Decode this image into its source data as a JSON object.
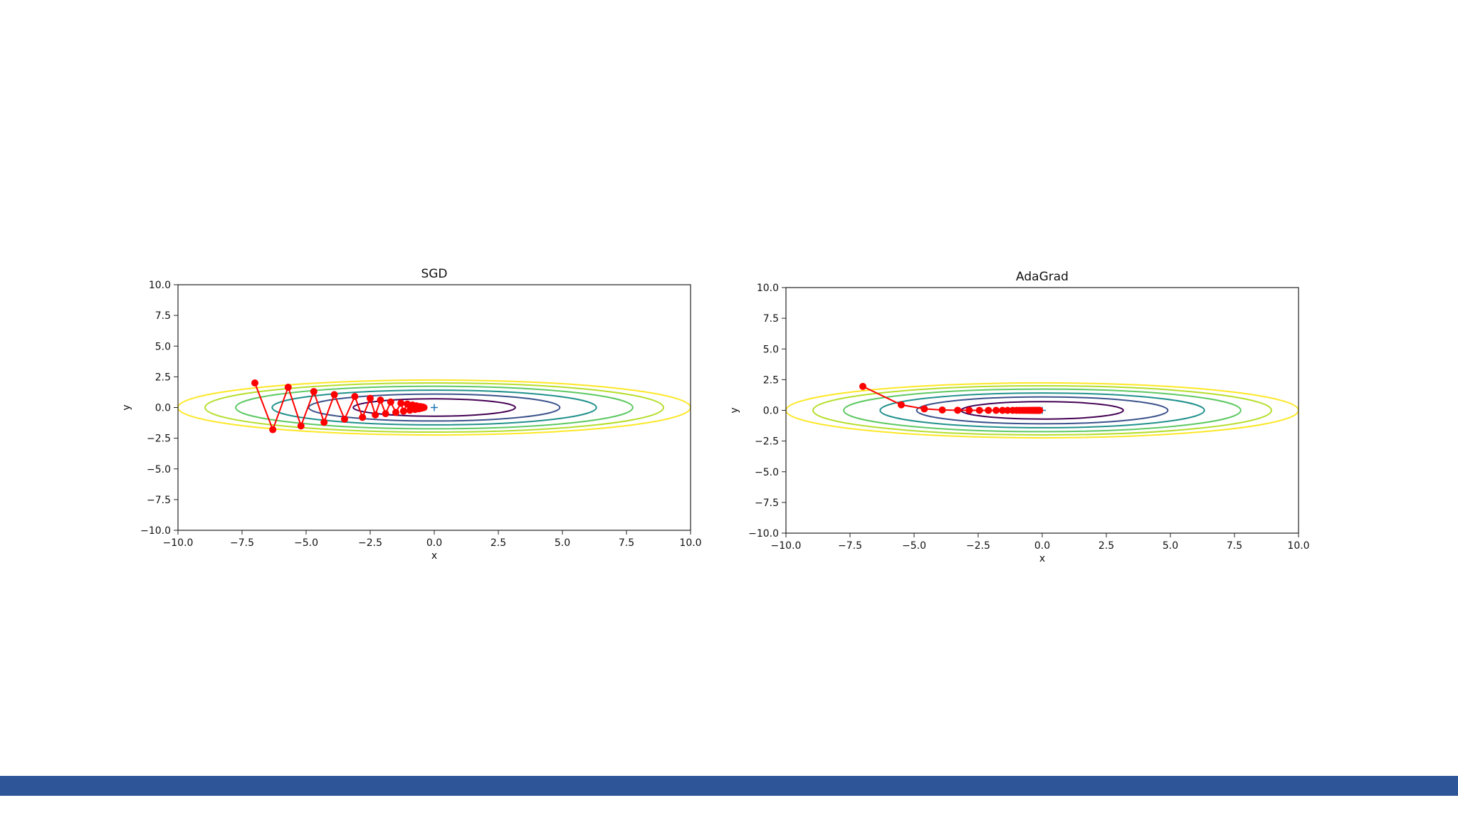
{
  "colors": {
    "footer_bar": "#2e5597",
    "path": "#ff0000",
    "contours": [
      "#440154",
      "#3b528b",
      "#21918c",
      "#5ec962",
      "#b5de2b",
      "#fde725"
    ]
  },
  "chart_data": [
    {
      "type": "line",
      "title": "SGD",
      "xlabel": "x",
      "ylabel": "y",
      "xlim": [
        -10,
        10
      ],
      "ylim": [
        -10,
        10
      ],
      "xticks": [
        "−10.0",
        "−7.5",
        "−5.0",
        "−2.5",
        "0.0",
        "2.5",
        "5.0",
        "7.5",
        "10.0"
      ],
      "yticks": [
        "10.0",
        "7.5",
        "5.0",
        "2.5",
        "0.0",
        "−2.5",
        "−5.0",
        "−7.5",
        "−10.0"
      ],
      "contour_levels": [
        0.5,
        1.2,
        2.0,
        3.0,
        4.0,
        5.0
      ],
      "minimum": {
        "x": 0,
        "y": 0
      },
      "series": [
        {
          "x": [
            -7.0,
            -6.3,
            -5.7,
            -5.2,
            -4.7,
            -4.3,
            -3.9,
            -3.5,
            -3.1,
            -2.8,
            -2.5,
            -2.3,
            -2.1,
            -1.9,
            -1.7,
            -1.5,
            -1.3,
            -1.2,
            -1.05,
            -0.95,
            -0.85,
            -0.75,
            -0.7,
            -0.6,
            -0.55,
            -0.5,
            -0.45,
            -0.4
          ],
          "y": [
            2.0,
            -1.8,
            1.65,
            -1.5,
            1.3,
            -1.2,
            1.05,
            -0.95,
            0.9,
            -0.8,
            0.75,
            -0.6,
            0.6,
            -0.5,
            0.45,
            -0.4,
            0.35,
            -0.3,
            0.28,
            -0.22,
            0.2,
            -0.16,
            0.14,
            -0.1,
            0.08,
            -0.06,
            0.04,
            0.0
          ]
        }
      ]
    },
    {
      "type": "line",
      "title": "AdaGrad",
      "xlabel": "x",
      "ylabel": "y",
      "xlim": [
        -10,
        10
      ],
      "ylim": [
        -10,
        10
      ],
      "xticks": [
        "−10.0",
        "−7.5",
        "−5.0",
        "−2.5",
        "0.0",
        "2.5",
        "5.0",
        "7.5",
        "10.0"
      ],
      "yticks": [
        "10.0",
        "7.5",
        "5.0",
        "2.5",
        "0.0",
        "−2.5",
        "−5.0",
        "−7.5",
        "−10.0"
      ],
      "contour_levels": [
        0.5,
        1.2,
        2.0,
        3.0,
        4.0,
        5.0
      ],
      "minimum": {
        "x": 0,
        "y": 0
      },
      "series": [
        {
          "x": [
            -7.0,
            -5.5,
            -4.6,
            -3.9,
            -3.3,
            -2.85,
            -2.45,
            -2.1,
            -1.8,
            -1.55,
            -1.35,
            -1.15,
            -1.0,
            -0.88,
            -0.76,
            -0.66,
            -0.57,
            -0.49,
            -0.42,
            -0.36,
            -0.31,
            -0.27,
            -0.23,
            -0.2,
            -0.17,
            -0.14,
            -0.12,
            -0.1
          ],
          "y": [
            1.95,
            0.45,
            0.12,
            0.03,
            0.01,
            0.0,
            0.0,
            0.0,
            0.0,
            0.0,
            0.0,
            0.0,
            0.0,
            0.0,
            0.0,
            0.0,
            0.0,
            0.0,
            0.0,
            0.0,
            0.0,
            0.0,
            0.0,
            0.0,
            0.0,
            0.0,
            0.0,
            0.0
          ]
        }
      ]
    }
  ]
}
